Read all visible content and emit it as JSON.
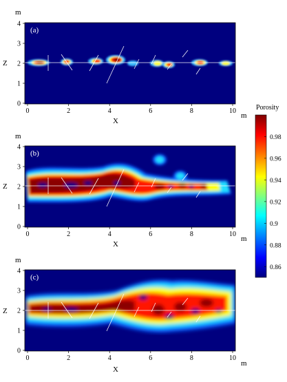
{
  "figure": {
    "colorbar": {
      "title": "Porosity",
      "ticks": [
        "0.98",
        "0.96",
        "0.94",
        "0.92",
        "0.9",
        "0.88",
        "0.86"
      ],
      "tick_values": [
        0.98,
        0.96,
        0.94,
        0.92,
        0.9,
        0.88,
        0.86
      ],
      "range": [
        0.85,
        1.0
      ],
      "colormap": [
        "#00007f",
        "#0000ff",
        "#00ffff",
        "#ffff00",
        "#ff0000",
        "#7f0000"
      ]
    },
    "axes": {
      "x_ticks": [
        "0",
        "2",
        "4",
        "6",
        "8",
        "10"
      ],
      "y_ticks": [
        "0",
        "1",
        "2",
        "3",
        "4"
      ],
      "x_label": "X",
      "y_label": "Z",
      "unit": "m",
      "xlim": [
        0,
        10
      ],
      "ylim": [
        0,
        4
      ]
    },
    "panels": [
      {
        "label": "(a)",
        "spread": "low"
      },
      {
        "label": "(b)",
        "spread": "medium"
      },
      {
        "label": "(c)",
        "spread": "high"
      }
    ],
    "colors": {
      "background": "#00007f",
      "fracture_line": "#ffffff",
      "high_porosity": "#8b0000"
    }
  }
}
